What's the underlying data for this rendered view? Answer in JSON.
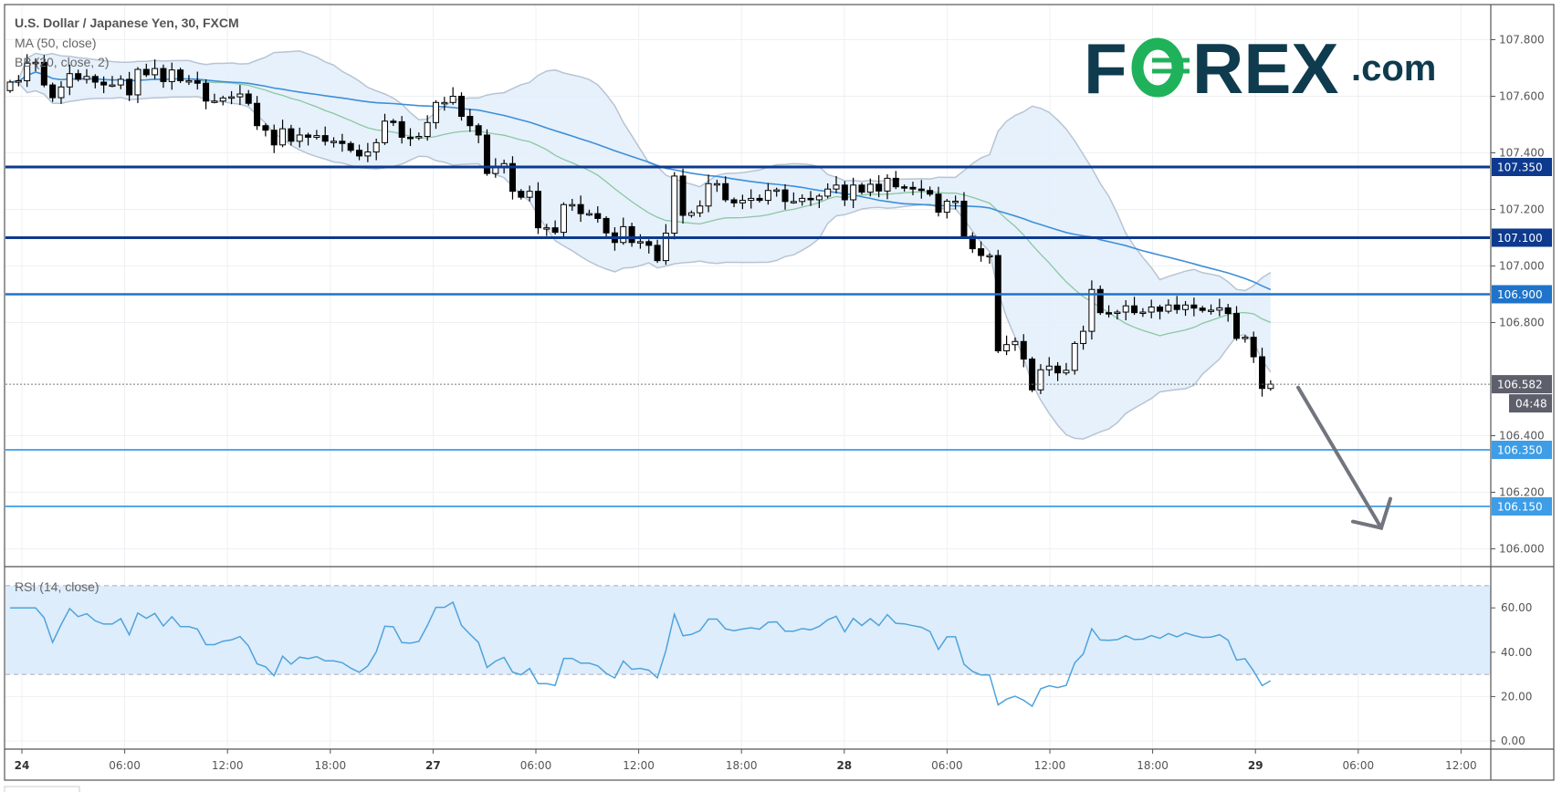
{
  "header": {
    "title": "U.S. Dollar / Japanese Yen, 30, FXCM",
    "ma_label": "MA (50, close)",
    "bb_label": "BB (20, close, 2)"
  },
  "logo": {
    "left": "F",
    "right": "REX",
    "suffix": ".com",
    "o_color": "#1fb25a",
    "color": "#0e3b4d"
  },
  "price_axis": {
    "ticks": [
      "107.800",
      "107.600",
      "107.400",
      "107.200",
      "107.000",
      "106.800",
      "106.400",
      "106.200",
      "106.000"
    ]
  },
  "levels": [
    {
      "price": "107.350",
      "color": "#0d3a8e"
    },
    {
      "price": "107.100",
      "color": "#0d3a8e"
    },
    {
      "price": "106.900",
      "color": "#1f73c9"
    },
    {
      "price": "106.350",
      "color": "#3d9de6"
    },
    {
      "price": "106.150",
      "color": "#3d9de6"
    }
  ],
  "last_price": {
    "value": "106.582",
    "countdown": "04:48",
    "color": "#5d606b"
  },
  "time_axis": {
    "labels": [
      {
        "text": "24",
        "bold": true
      },
      {
        "text": "06:00"
      },
      {
        "text": "12:00"
      },
      {
        "text": "18:00"
      },
      {
        "text": "27",
        "bold": true
      },
      {
        "text": "06:00"
      },
      {
        "text": "12:00"
      },
      {
        "text": "18:00"
      },
      {
        "text": "28",
        "bold": true
      },
      {
        "text": "06:00"
      },
      {
        "text": "12:00"
      },
      {
        "text": "18:00"
      },
      {
        "text": "29",
        "bold": true
      },
      {
        "text": "06:00"
      },
      {
        "text": "12:00"
      }
    ]
  },
  "rsi": {
    "label": "RSI (14, close)",
    "ticks": [
      "60.00",
      "40.00",
      "20.00",
      "0.00"
    ],
    "upper": 70,
    "lower": 30
  },
  "chart_data": {
    "type": "candlestick",
    "title": "U.S. Dollar / Japanese Yen, 30, FXCM",
    "interval_minutes": 30,
    "first_open": 107.62,
    "closes": [
      107.65,
      107.655,
      107.717,
      107.72,
      107.64,
      107.595,
      107.633,
      107.68,
      107.66,
      107.67,
      107.65,
      107.64,
      107.64,
      107.66,
      107.605,
      107.695,
      107.676,
      107.698,
      107.652,
      107.693,
      107.655,
      107.655,
      107.646,
      107.583,
      107.583,
      107.594,
      107.598,
      107.608,
      107.575,
      107.496,
      107.48,
      107.428,
      107.485,
      107.441,
      107.463,
      107.455,
      107.461,
      107.441,
      107.441,
      107.433,
      107.409,
      107.389,
      107.403,
      107.436,
      107.512,
      107.51,
      107.455,
      107.453,
      107.458,
      107.507,
      107.578,
      107.578,
      107.6,
      107.529,
      107.496,
      107.463,
      107.327,
      107.349,
      107.362,
      107.264,
      107.243,
      107.264,
      107.135,
      107.135,
      107.119,
      107.217,
      107.217,
      107.185,
      107.185,
      107.168,
      107.117,
      107.083,
      107.139,
      107.083,
      107.086,
      107.073,
      107.019,
      107.116,
      107.318,
      107.179,
      107.188,
      107.212,
      107.291,
      107.291,
      107.234,
      107.223,
      107.232,
      107.239,
      107.232,
      107.267,
      107.269,
      107.228,
      107.228,
      107.239,
      107.234,
      107.247,
      107.272,
      107.286,
      107.234,
      107.286,
      107.261,
      107.289,
      107.265,
      107.31,
      107.28,
      107.278,
      107.272,
      107.267,
      107.254,
      107.19,
      107.229,
      107.229,
      107.105,
      107.061,
      107.037,
      107.037,
      106.7,
      106.722,
      106.733,
      106.671,
      106.562,
      106.633,
      106.646,
      106.622,
      106.631,
      106.726,
      106.769,
      106.917,
      106.835,
      106.833,
      106.837,
      106.859,
      106.835,
      106.837,
      106.855,
      106.84,
      106.862,
      106.846,
      106.862,
      106.851,
      106.843,
      106.844,
      106.852,
      106.832,
      106.744,
      106.748,
      106.679,
      106.567,
      106.582
    ],
    "indicators": {
      "ma_period": 50,
      "bb_period": 20,
      "bb_mult": 2,
      "rsi_period": 14
    },
    "ylim": [
      105.95,
      107.87
    ],
    "rsi_ylim": [
      0,
      70
    ],
    "colors": {
      "ma": "#3d8fd9",
      "bb_mid": "#8cc7a0",
      "bb_band": "#b7c4d2",
      "bb_fill": "#e2effb",
      "rsi": "#4ea3dd",
      "arrow": "#72757d"
    },
    "annotation": {
      "type": "arrow",
      "direction": "down",
      "from_price": 106.58,
      "to_price": 106.09
    }
  }
}
